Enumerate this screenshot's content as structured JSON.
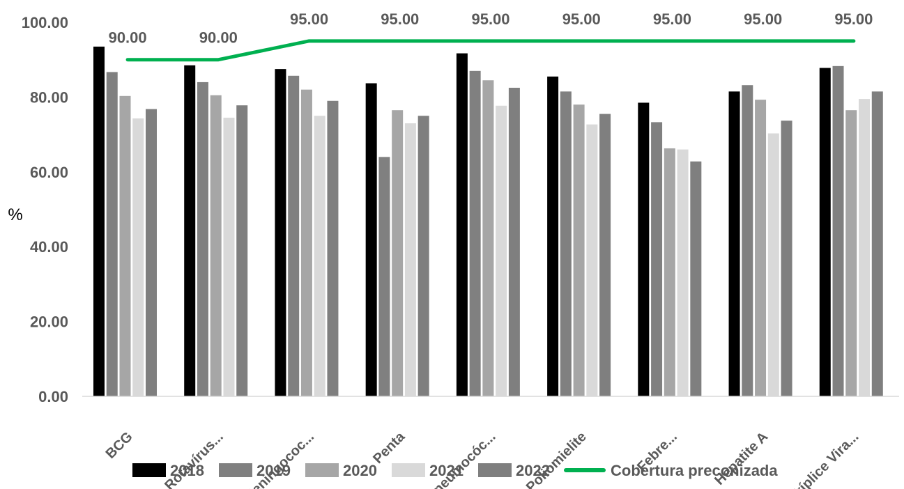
{
  "chart_data": {
    "type": "bar",
    "ylabel": "%",
    "ylim": [
      0,
      100
    ],
    "y_ticks": [
      "0.00",
      "20.00",
      "40.00",
      "60.00",
      "80.00",
      "100.00"
    ],
    "categories": [
      "BCG",
      "Rotavírus...",
      "Meningococ...",
      "Penta",
      "Pneumocóc...",
      "Poliomielite",
      "Febre...",
      "Hepatite A",
      "Tríplice Vira..."
    ],
    "series": [
      {
        "name": "2018",
        "color": "#000000",
        "values": [
          93.5,
          88.5,
          87.5,
          83.7,
          91.7,
          85.5,
          78.5,
          81.5,
          87.8
        ]
      },
      {
        "name": "2019",
        "color": "#808080",
        "values": [
          86.7,
          84.0,
          85.7,
          64.0,
          87.0,
          81.5,
          73.3,
          83.2,
          88.3
        ]
      },
      {
        "name": "2020",
        "color": "#a6a6a6",
        "values": [
          80.3,
          80.5,
          82.0,
          76.5,
          84.5,
          78.0,
          66.3,
          79.3,
          76.5
        ]
      },
      {
        "name": "2021",
        "color": "#d9d9d9",
        "values": [
          74.3,
          74.5,
          75.0,
          73.0,
          77.7,
          72.7,
          66.0,
          70.3,
          79.5
        ]
      },
      {
        "name": "2022",
        "color": "#7f7f7f",
        "values": [
          76.8,
          77.8,
          79.0,
          75.0,
          82.5,
          75.5,
          62.8,
          73.7,
          81.5
        ]
      }
    ],
    "line_series": {
      "name": "Cobertura preconizada",
      "color": "#00b050",
      "values": [
        90,
        90,
        95,
        95,
        95,
        95,
        95,
        95,
        95
      ],
      "data_labels": [
        "90.00",
        "90.00",
        "95.00",
        "95.00",
        "95.00",
        "95.00",
        "95.00",
        "95.00",
        "95.00"
      ]
    },
    "grid": false,
    "legend_position": "bottom"
  }
}
